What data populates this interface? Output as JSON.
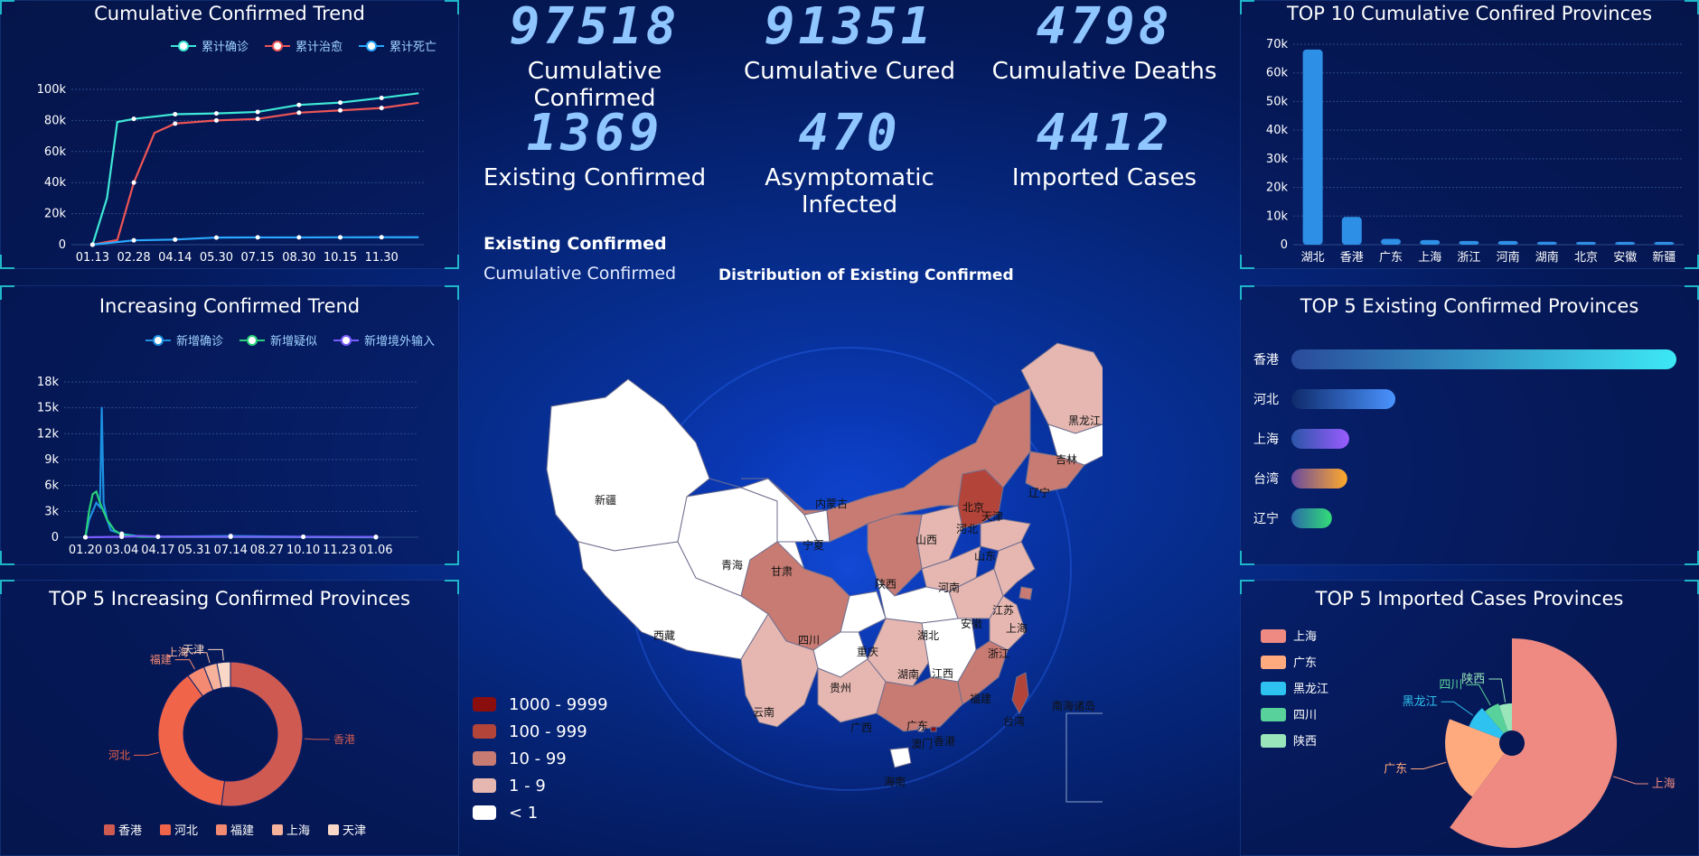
{
  "stats": [
    {
      "value": "97518",
      "label": "Cumulative Confirmed"
    },
    {
      "value": "91351",
      "label": "Cumulative Cured"
    },
    {
      "value": "4798",
      "label": "Cumulative Deaths"
    },
    {
      "value": "1369",
      "label": "Existing Confirmed"
    },
    {
      "value": "470",
      "label": "Asymptomatic Infected"
    },
    {
      "value": "4412",
      "label": "Imported Cases"
    }
  ],
  "map": {
    "toggle_active": "Existing Confirmed",
    "toggle_inactive": "Cumulative Confirmed",
    "title": "Distribution of Existing Confirmed",
    "legend": [
      {
        "label": "1000 - 9999",
        "color": "#8a0e0e"
      },
      {
        "label": "100 - 999",
        "color": "#b3443a"
      },
      {
        "label": "10 - 99",
        "color": "#c77b73"
      },
      {
        "label": "1 - 9",
        "color": "#e6b7b1"
      },
      {
        "label": "< 1",
        "color": "#ffffff"
      }
    ],
    "labels": [
      "新疆",
      "西藏",
      "青海",
      "甘肃",
      "宁夏",
      "内蒙古",
      "黑龙江",
      "吉林",
      "辽宁",
      "北京",
      "天津",
      "河北",
      "山西",
      "陕西",
      "山东",
      "河南",
      "四川",
      "重庆",
      "湖北",
      "安徽",
      "江苏",
      "上海",
      "浙江",
      "贵州",
      "湖南",
      "江西",
      "云南",
      "广西",
      "广东",
      "福建",
      "台湾",
      "香港",
      "澳门",
      "海南",
      "南海诸岛"
    ]
  },
  "chart_data": [
    {
      "id": "cumulative_trend",
      "type": "line",
      "title": "Cumulative Confirmed Trend",
      "categories": [
        "01.13",
        "02.28",
        "04.14",
        "05.30",
        "07.15",
        "08.30",
        "10.15",
        "11.30"
      ],
      "ylim": [
        0,
        100000
      ],
      "yticks": [
        "0",
        "20k",
        "40k",
        "60k",
        "80k",
        "100k"
      ],
      "series": [
        {
          "name": "累计确诊",
          "color": "#3ee8d6",
          "points": [
            [
              0,
              0
            ],
            [
              0.35,
              30000
            ],
            [
              0.6,
              79000
            ],
            [
              1,
              81000
            ],
            [
              2,
              84000
            ],
            [
              3,
              84500
            ],
            [
              4,
              85500
            ],
            [
              5,
              90000
            ],
            [
              6,
              91500
            ],
            [
              7,
              94500
            ],
            [
              7.9,
              97500
            ]
          ]
        },
        {
          "name": "累计治愈",
          "color": "#ee5555",
          "points": [
            [
              0,
              0
            ],
            [
              0.6,
              3000
            ],
            [
              1,
              40000
            ],
            [
              1.5,
              72000
            ],
            [
              2,
              78000
            ],
            [
              3,
              80000
            ],
            [
              4,
              81000
            ],
            [
              5,
              85000
            ],
            [
              6,
              86500
            ],
            [
              7,
              88000
            ],
            [
              7.9,
              91400
            ]
          ]
        },
        {
          "name": "累计死亡",
          "color": "#2aa9ff",
          "points": [
            [
              0,
              0
            ],
            [
              1,
              2800
            ],
            [
              2,
              3300
            ],
            [
              3,
              4600
            ],
            [
              4,
              4700
            ],
            [
              5,
              4700
            ],
            [
              6,
              4750
            ],
            [
              7,
              4780
            ],
            [
              7.9,
              4800
            ]
          ]
        }
      ]
    },
    {
      "id": "increasing_trend",
      "type": "line",
      "title": "Increasing Confirmed Trend",
      "categories": [
        "01.20",
        "03.04",
        "04.17",
        "05.31",
        "07.14",
        "08.27",
        "10.10",
        "11.23",
        "01.06"
      ],
      "ylim": [
        0,
        18000
      ],
      "yticks": [
        "0",
        "3k",
        "6k",
        "9k",
        "12k",
        "15k",
        "18k"
      ],
      "series": [
        {
          "name": "新增确诊",
          "color": "#1c8fe0",
          "points": [
            [
              0,
              0
            ],
            [
              0.1,
              2000
            ],
            [
              0.2,
              3000
            ],
            [
              0.3,
              4000
            ],
            [
              0.4,
              3500
            ],
            [
              0.45,
              15100
            ],
            [
              0.5,
              4000
            ],
            [
              0.6,
              2000
            ],
            [
              0.7,
              800
            ],
            [
              1,
              400
            ],
            [
              1.5,
              100
            ],
            [
              2,
              50
            ],
            [
              4,
              150
            ],
            [
              6,
              50
            ],
            [
              8,
              30
            ]
          ]
        },
        {
          "name": "新增疑似",
          "color": "#28d07a",
          "points": [
            [
              0,
              0
            ],
            [
              0.1,
              3000
            ],
            [
              0.2,
              5000
            ],
            [
              0.3,
              5300
            ],
            [
              0.4,
              4000
            ],
            [
              0.5,
              3000
            ],
            [
              0.6,
              2000
            ],
            [
              0.8,
              800
            ],
            [
              1,
              300
            ],
            [
              1.5,
              50
            ],
            [
              8,
              0
            ]
          ]
        },
        {
          "name": "新增境外输入",
          "color": "#7a5cff",
          "points": [
            [
              0,
              0
            ],
            [
              1,
              50
            ],
            [
              1.5,
              150
            ],
            [
              2,
              80
            ],
            [
              4,
              60
            ],
            [
              6,
              50
            ],
            [
              8,
              40
            ]
          ]
        }
      ]
    },
    {
      "id": "top5_increasing",
      "type": "pie",
      "title": "TOP 5 Increasing Confirmed Provinces",
      "slices": [
        {
          "name": "香港",
          "value": 52,
          "color": "#cf5a52"
        },
        {
          "name": "河北",
          "value": 38,
          "color": "#f0644a"
        },
        {
          "name": "福建",
          "value": 4,
          "color": "#f58a72"
        },
        {
          "name": "上海",
          "value": 3,
          "color": "#f6b29a"
        },
        {
          "name": "天津",
          "value": 3,
          "color": "#f9d8c8"
        }
      ]
    },
    {
      "id": "top10_cumulative",
      "type": "bar",
      "title": "TOP 10 Cumulative Confired Provinces",
      "categories": [
        "湖北",
        "香港",
        "广东",
        "上海",
        "浙江",
        "河南",
        "湖南",
        "北京",
        "安徽",
        "新疆"
      ],
      "values": [
        68139,
        9700,
        2050,
        1600,
        1320,
        1290,
        1020,
        1000,
        992,
        980
      ],
      "ylim": [
        0,
        70000
      ],
      "yticks": [
        "0",
        "10k",
        "20k",
        "30k",
        "40k",
        "50k",
        "60k",
        "70k"
      ]
    },
    {
      "id": "top5_existing",
      "type": "bar",
      "title": "TOP 5 Existing Confirmed Provinces",
      "categories": [
        "香港",
        "河北",
        "上海",
        "台湾",
        "辽宁"
      ],
      "values": [
        1000,
        270,
        150,
        145,
        105
      ],
      "gradients": [
        [
          "#2a4b9a",
          "#3de8f5"
        ],
        [
          "#0f2a6a",
          "#4a93ff"
        ],
        [
          "#2b55a8",
          "#9a5cff"
        ],
        [
          "#6a4aa0",
          "#ffaa2a"
        ],
        [
          "#2a6aa8",
          "#33dd77"
        ]
      ]
    },
    {
      "id": "top5_imported",
      "type": "pie",
      "title": "TOP 5 Imported Cases Provinces",
      "slices": [
        {
          "name": "上海",
          "value": 1100,
          "color": "#ee8a82"
        },
        {
          "name": "广东",
          "value": 380,
          "color": "#ffa97e"
        },
        {
          "name": "黑龙江",
          "value": 145,
          "color": "#2ec2f0"
        },
        {
          "name": "四川",
          "value": 110,
          "color": "#58d19a"
        },
        {
          "name": "陕西",
          "value": 95,
          "color": "#99e6bb"
        }
      ]
    }
  ]
}
